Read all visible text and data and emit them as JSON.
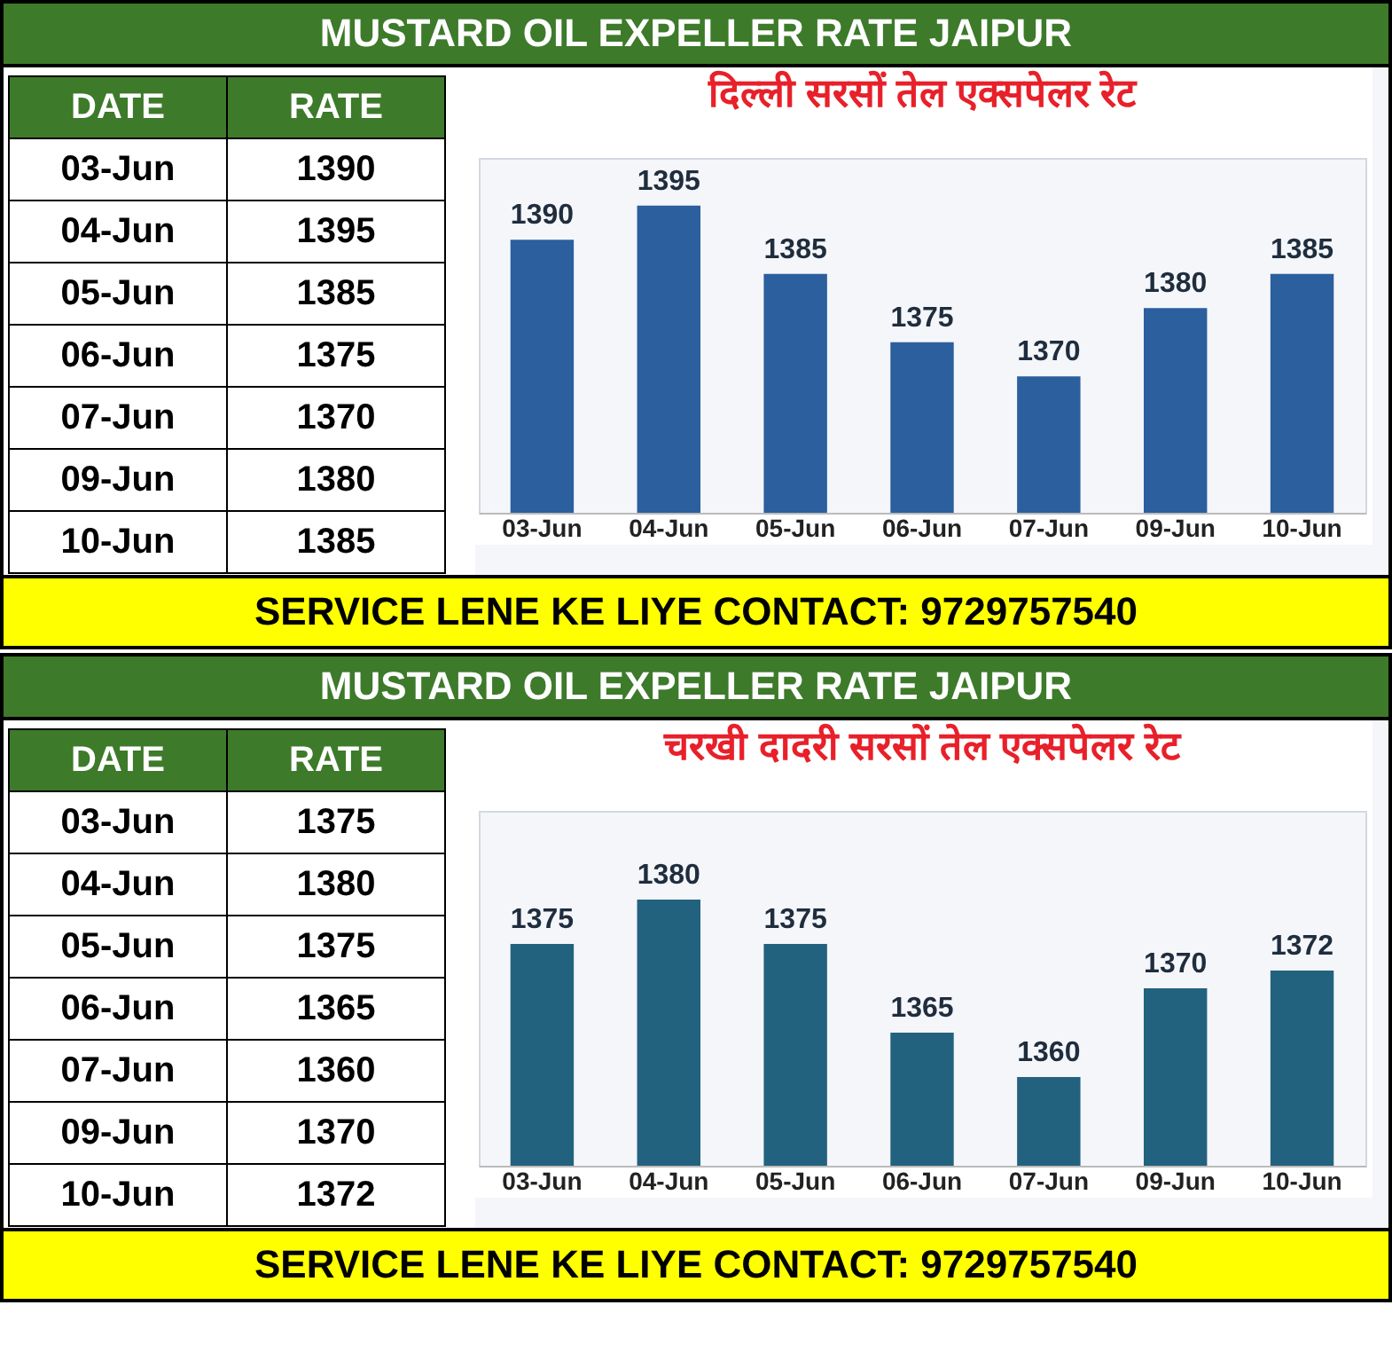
{
  "chart_data": [
    {
      "type": "bar",
      "title": "दिल्ली सरसों तेल एक्सपेलर रेट",
      "subtitle": "MUSTARD OIL EXPELLER RATE JAIPUR",
      "categories": [
        "03-Jun",
        "04-Jun",
        "05-Jun",
        "06-Jun",
        "07-Jun",
        "09-Jun",
        "10-Jun"
      ],
      "values": [
        1390,
        1395,
        1385,
        1375,
        1370,
        1380,
        1385
      ],
      "color": "#2b5f9e",
      "ylim": [
        1350,
        1402
      ],
      "data_labels": true,
      "tick_labels": "x",
      "annotations": [
        "DATE",
        "RATE",
        "1390",
        "1395",
        "1385",
        "1375",
        "1370",
        "1380",
        "1385",
        "SERVICE LENE KE LIYE CONTACT: 9729757540"
      ]
    },
    {
      "type": "bar",
      "title": "चरखी दादरी सरसों तेल एक्सपेलर रेट",
      "subtitle": "MUSTARD OIL EXPELLER RATE JAIPUR",
      "categories": [
        "03-Jun",
        "04-Jun",
        "05-Jun",
        "06-Jun",
        "07-Jun",
        "09-Jun",
        "10-Jun"
      ],
      "values": [
        1375,
        1380,
        1375,
        1365,
        1360,
        1370,
        1372
      ],
      "color": "#23627f",
      "ylim": [
        1350,
        1390
      ],
      "data_labels": true,
      "tick_labels": "x",
      "annotations": [
        "DATE",
        "RATE",
        "1375",
        "1380",
        "1375",
        "1365",
        "1360",
        "1370",
        "1372",
        "SERVICE LENE KE LIYE CONTACT: 9729757540"
      ]
    }
  ]
}
